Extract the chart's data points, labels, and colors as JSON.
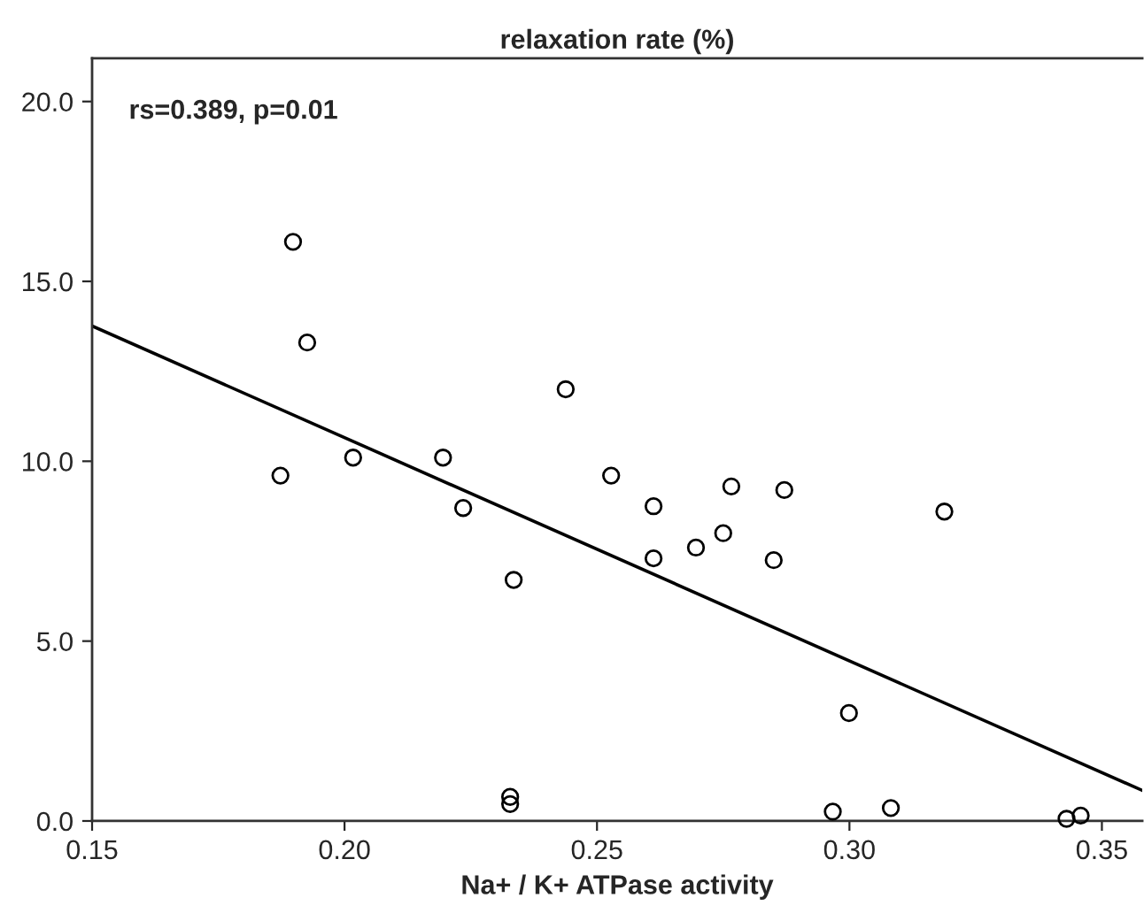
{
  "chart_data": {
    "type": "scatter",
    "title": "relaxation rate (%)",
    "xlabel": "Na+ / K+ ATPase activity",
    "annotations": [
      "rs=0.389, p=0.01"
    ],
    "xlim": [
      0.15,
      0.358
    ],
    "xticks": [
      {
        "value": 0.15,
        "label": "0.15"
      },
      {
        "value": 0.2,
        "label": "0.20"
      },
      {
        "value": 0.25,
        "label": "0.25"
      },
      {
        "value": 0.3,
        "label": "0.30"
      },
      {
        "value": 0.35,
        "label": "0.35"
      }
    ],
    "ylim": [
      0,
      21.2
    ],
    "yticks": [
      {
        "value": 0,
        "label": "0.0"
      },
      {
        "value": 5,
        "label": "5.0"
      },
      {
        "value": 10,
        "label": "10.0"
      },
      {
        "value": 15,
        "label": "15.0"
      },
      {
        "value": 20,
        "label": "20.0"
      }
    ],
    "grid": false,
    "legend": false,
    "marker": "circle",
    "series": [
      {
        "color": "#000000",
        "x": [
          0.1898,
          0.1926,
          0.1873,
          0.2017,
          0.2195,
          0.2235,
          0.2335,
          0.2438,
          0.2528,
          0.2612,
          0.2766,
          0.2871,
          0.2612,
          0.2696,
          0.275,
          0.285,
          0.3188,
          0.2999,
          0.2967,
          0.3082,
          0.343,
          0.3458,
          0.2328,
          0.2328
        ],
        "values": [
          16.1,
          13.3,
          9.6,
          10.1,
          10.1,
          8.7,
          6.7,
          12.0,
          9.6,
          8.75,
          9.3,
          9.2,
          7.3,
          7.6,
          8.0,
          7.25,
          8.6,
          3.0,
          0.26,
          0.36,
          0.06,
          0.15,
          0.67,
          0.47
        ]
      },
      {
        "type": "line",
        "color": "#000000",
        "marker": "none",
        "line_style": "solid",
        "x": [
          0.15,
          0.358
        ],
        "values": [
          13.76,
          0.85
        ]
      }
    ]
  }
}
